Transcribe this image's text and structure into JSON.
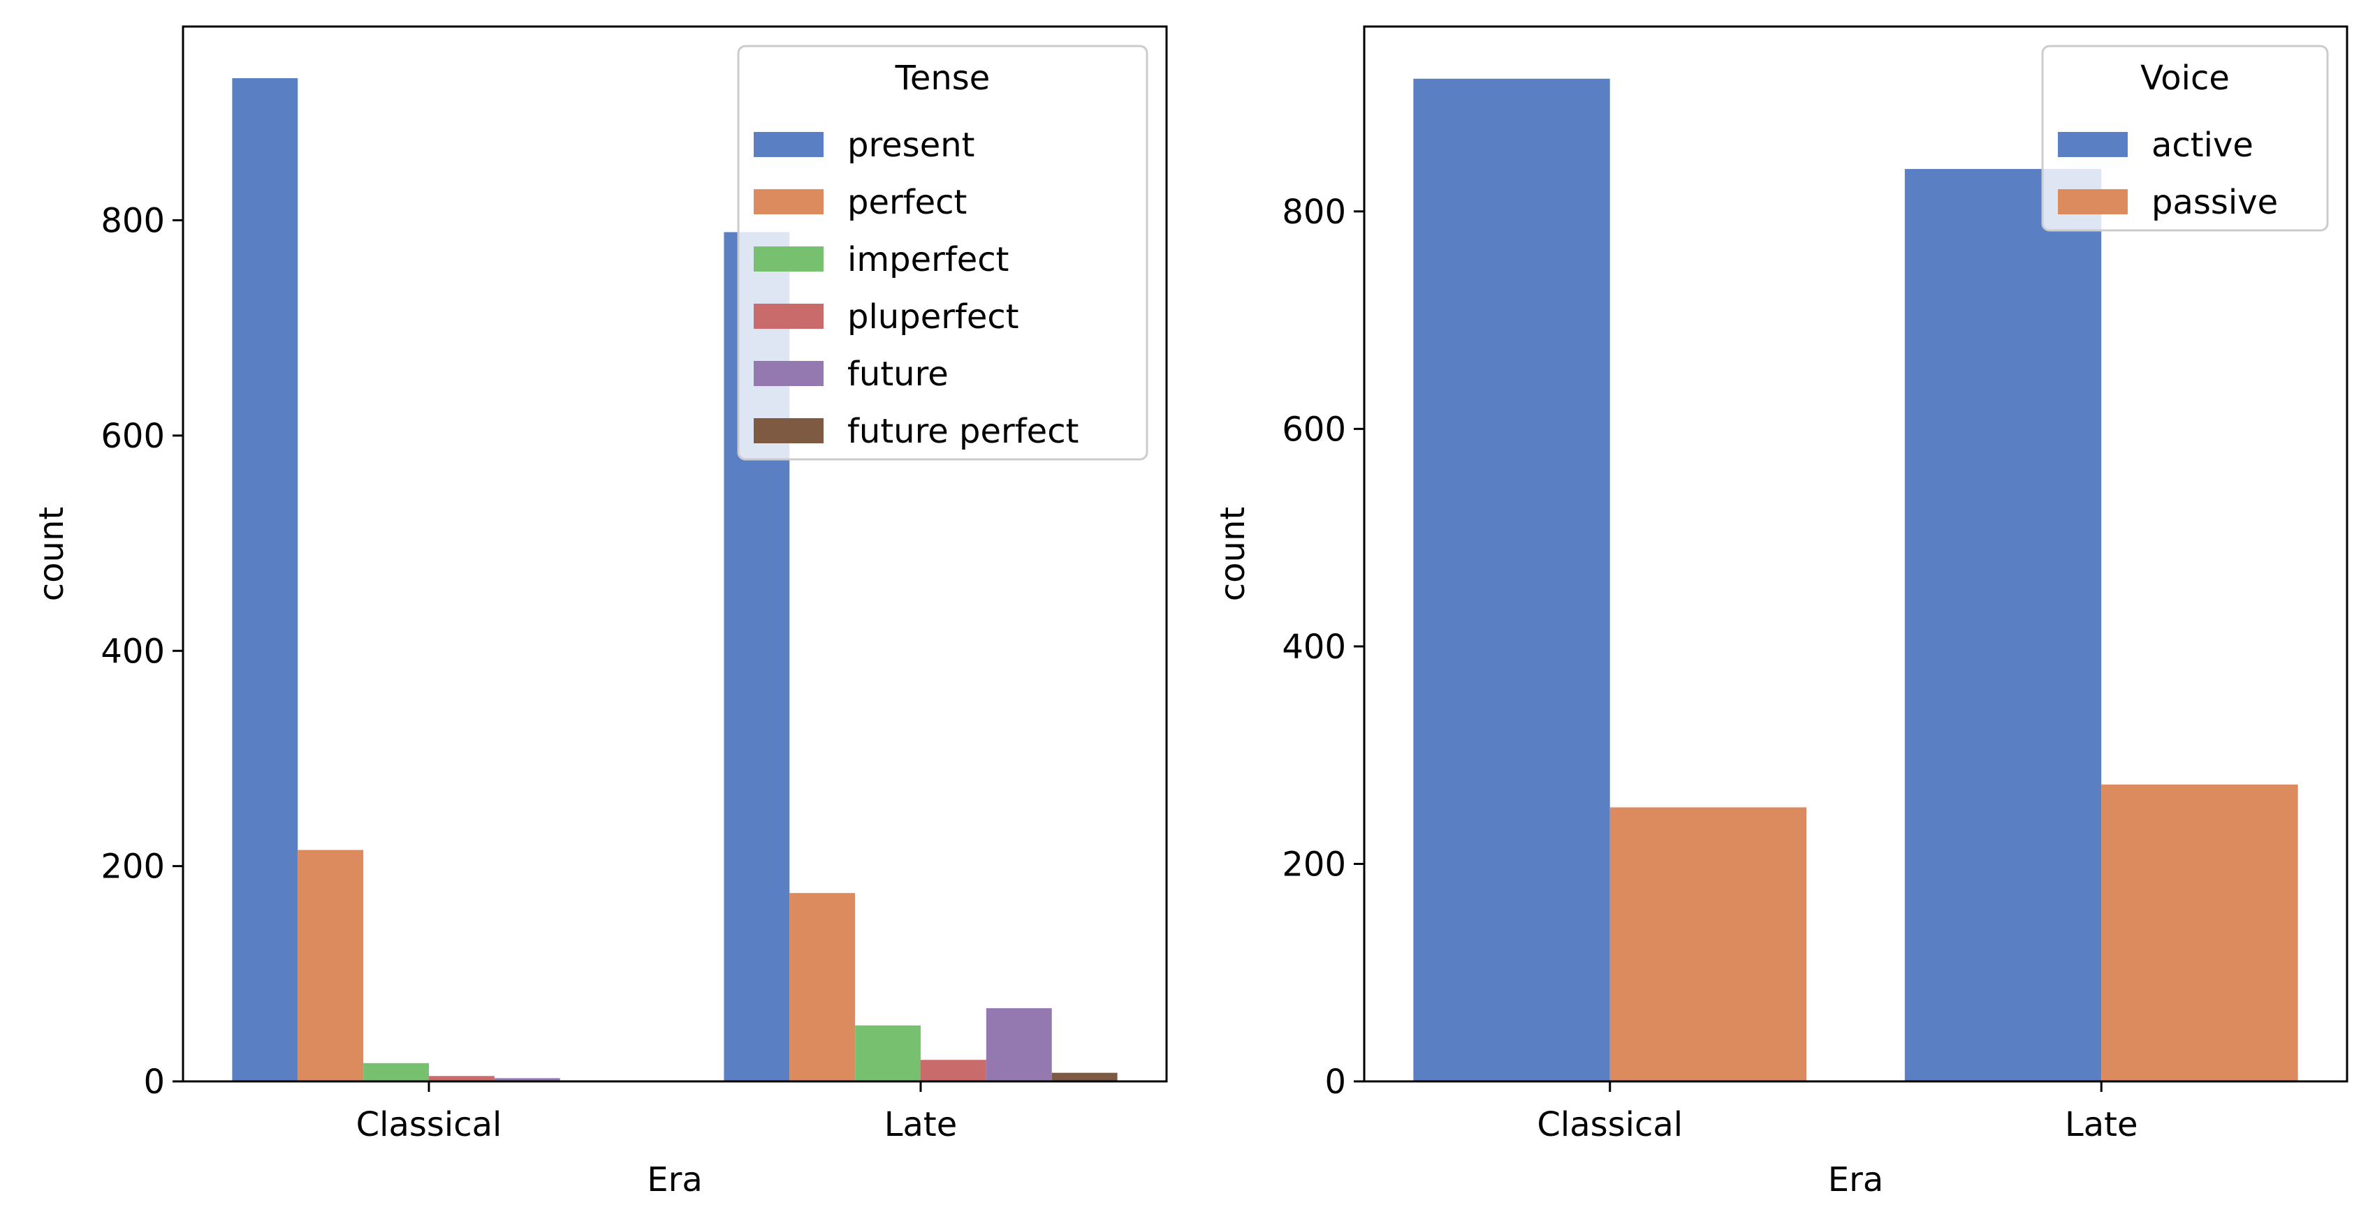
{
  "chart_data": [
    {
      "type": "bar",
      "xlabel": "Era",
      "ylabel": "count",
      "categories": [
        "Classical",
        "Late"
      ],
      "ylim": [
        0,
        980
      ],
      "yticks": [
        0,
        200,
        400,
        600,
        800
      ],
      "legend": {
        "title": "Tense",
        "position": "top-right"
      },
      "series": [
        {
          "name": "present",
          "color": "#5a7fc2",
          "values": [
            932,
            789
          ]
        },
        {
          "name": "perfect",
          "color": "#dc8b5e",
          "values": [
            215,
            175
          ]
        },
        {
          "name": "imperfect",
          "color": "#77c06f",
          "values": [
            17,
            52
          ]
        },
        {
          "name": "pluperfect",
          "color": "#c96b6b",
          "values": [
            5,
            20
          ]
        },
        {
          "name": "future",
          "color": "#9478b0",
          "values": [
            3,
            68
          ]
        },
        {
          "name": "future perfect",
          "color": "#7f5a42",
          "values": [
            0,
            8
          ]
        }
      ]
    },
    {
      "type": "bar",
      "xlabel": "Era",
      "ylabel": "count",
      "categories": [
        "Classical",
        "Late"
      ],
      "ylim": [
        0,
        970
      ],
      "yticks": [
        0,
        200,
        400,
        600,
        800
      ],
      "legend": {
        "title": "Voice",
        "position": "top-right"
      },
      "series": [
        {
          "name": "active",
          "color": "#5a7fc2",
          "values": [
            922,
            839
          ]
        },
        {
          "name": "passive",
          "color": "#dc8b5e",
          "values": [
            252,
            273
          ]
        }
      ]
    }
  ]
}
